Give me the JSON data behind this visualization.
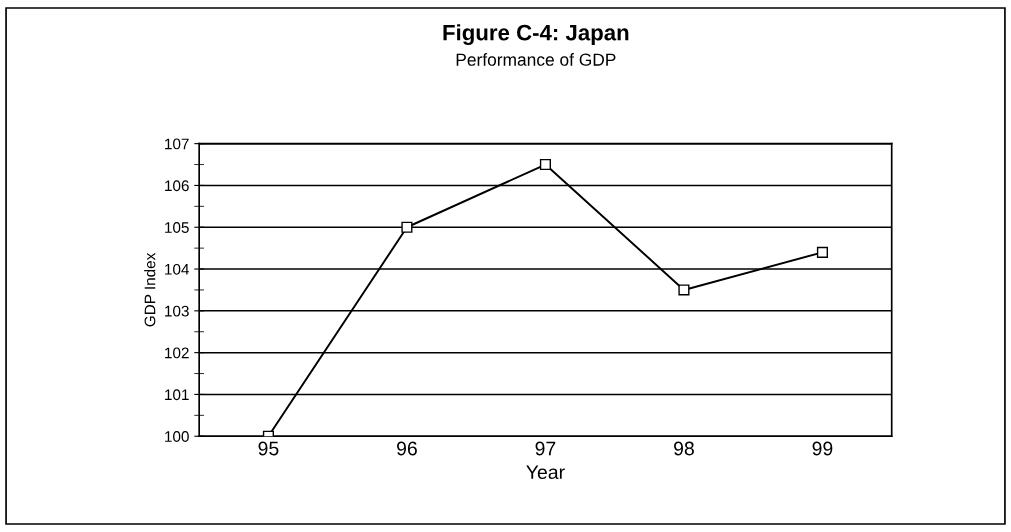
{
  "chart_data": {
    "type": "line",
    "title": "Figure C-4: Japan",
    "subtitle": "Performance of GDP",
    "xlabel": "Year",
    "ylabel": "GDP Index",
    "categories": [
      "95",
      "96",
      "97",
      "98",
      "99"
    ],
    "series": [
      {
        "color": "#000000",
        "values": [
          100,
          105.0,
          106.5,
          103.5,
          104.4
        ]
      }
    ],
    "ylim": [
      100,
      107
    ],
    "yticks": [
      100,
      101,
      102,
      103,
      104,
      105,
      106,
      107
    ],
    "grid": "y",
    "marker": "square",
    "line_style": "solid",
    "legend": false
  }
}
